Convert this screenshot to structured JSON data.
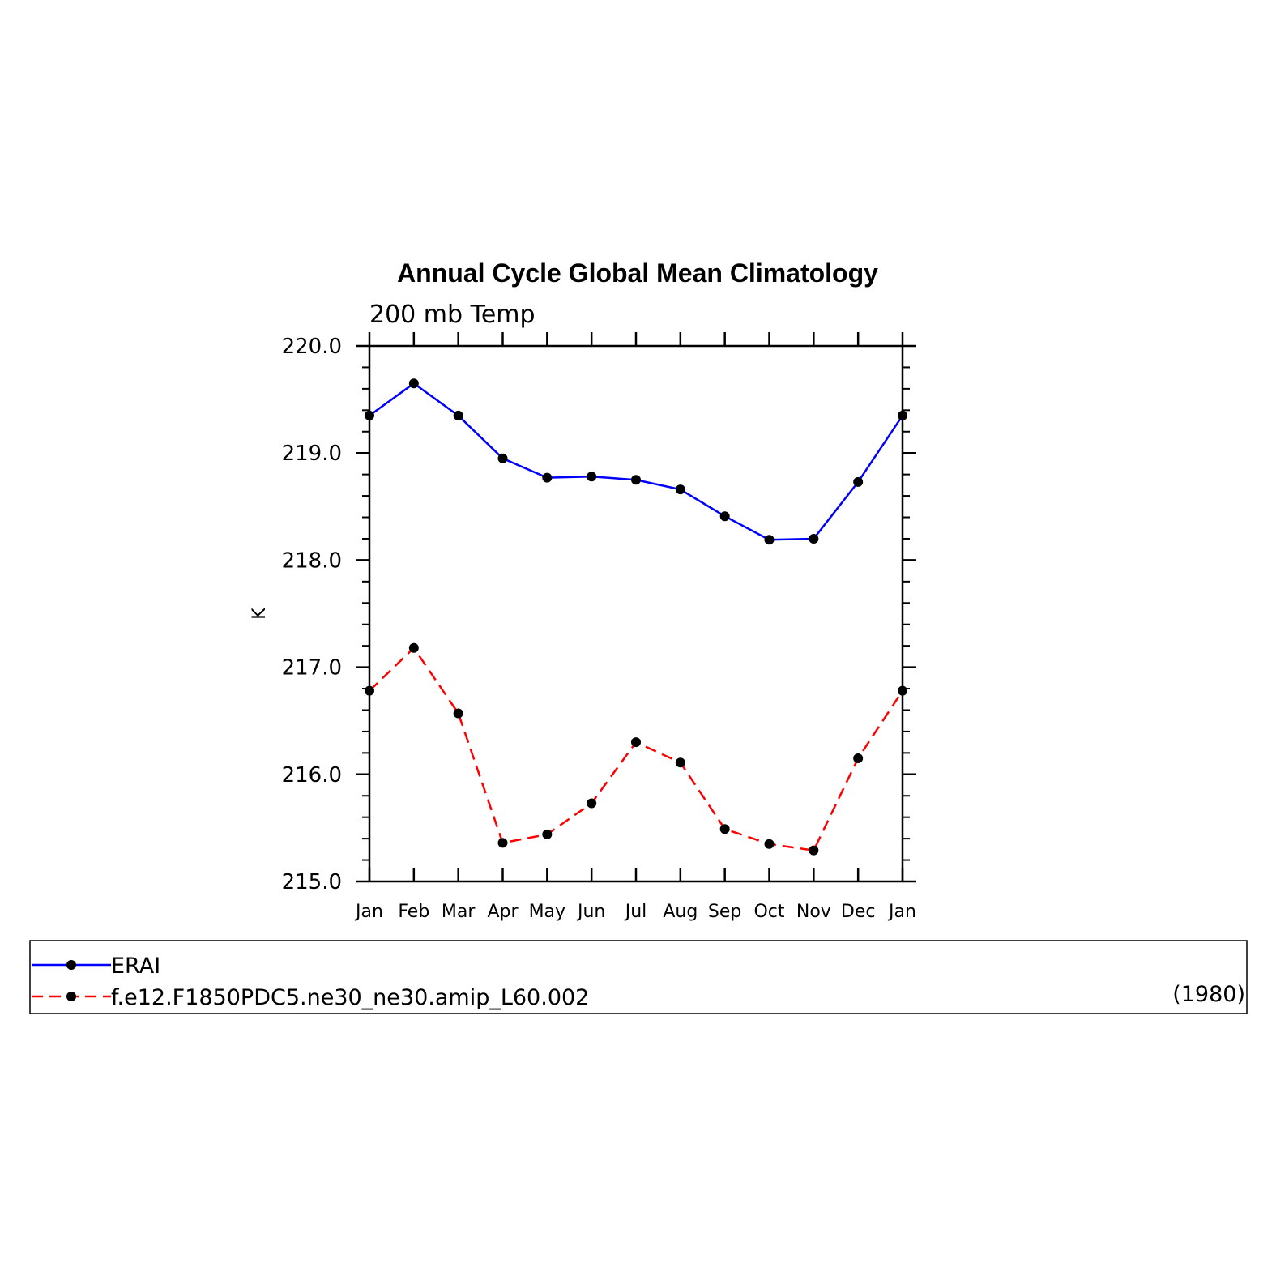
{
  "chart_data": {
    "type": "line",
    "title": "Annual Cycle Global Mean Climatology",
    "subtitle": "200 mb Temp",
    "xlabel": "",
    "ylabel": "K",
    "categories": [
      "Jan",
      "Feb",
      "Mar",
      "Apr",
      "May",
      "Jun",
      "Jul",
      "Aug",
      "Sep",
      "Oct",
      "Nov",
      "Dec",
      "Jan"
    ],
    "ylim": [
      215.0,
      220.0
    ],
    "yticks": [
      215.0,
      216.0,
      217.0,
      218.0,
      219.0,
      220.0
    ],
    "ytick_labels": [
      "215.0",
      "216.0",
      "217.0",
      "218.0",
      "219.0",
      "220.0"
    ],
    "grid": false,
    "legend_placement": "bottom",
    "series": [
      {
        "name": "ERAI",
        "color": "#0000ff",
        "line_style": "solid",
        "marker": "filled-circle",
        "values": [
          219.35,
          219.65,
          219.35,
          218.95,
          218.77,
          218.78,
          218.75,
          218.66,
          218.41,
          218.19,
          218.2,
          218.73,
          219.35
        ]
      },
      {
        "name": "f.e12.F1850PDC5.ne30_ne30.amip_L60.002",
        "color": "#ff0000",
        "line_style": "dashed",
        "marker": "filled-circle",
        "values": [
          216.78,
          217.18,
          216.57,
          215.36,
          215.44,
          215.73,
          216.3,
          216.11,
          215.49,
          215.35,
          215.29,
          216.15,
          216.78
        ]
      }
    ],
    "legend_note": "(1980)"
  }
}
